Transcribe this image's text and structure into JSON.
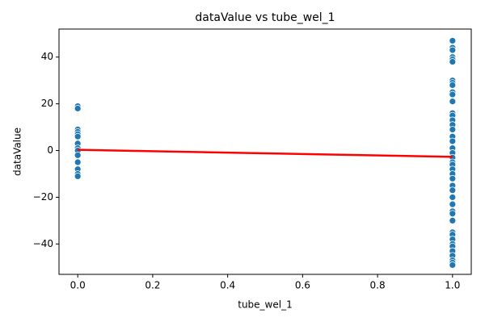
{
  "chart_data": {
    "type": "scatter",
    "title": "dataValue vs tube_wel_1",
    "xlabel": "tube_wel_1",
    "ylabel": "dataValue",
    "xlim": [
      -0.05,
      1.05
    ],
    "ylim": [
      -53,
      52
    ],
    "xticks": [
      {
        "value": 0,
        "label": "0.0"
      },
      {
        "value": 0.2,
        "label": "0.2"
      },
      {
        "value": 0.4,
        "label": "0.4"
      },
      {
        "value": 0.6,
        "label": "0.6"
      },
      {
        "value": 0.8,
        "label": "0.8"
      },
      {
        "value": 1,
        "label": "1.0"
      }
    ],
    "yticks": [
      {
        "value": -40,
        "label": "−40"
      },
      {
        "value": -20,
        "label": "−20"
      },
      0,
      20,
      40
    ],
    "series": [
      {
        "type": "scatter",
        "color": "#1f77b4",
        "x": [
          0,
          0,
          0,
          0,
          0,
          0,
          0,
          0,
          0,
          0,
          0,
          0,
          0,
          0,
          1,
          1,
          1,
          1,
          1,
          1,
          1,
          1,
          1,
          1,
          1,
          1,
          1,
          1,
          1,
          1,
          1,
          1,
          1,
          1,
          1,
          1,
          1,
          1,
          1,
          1,
          1,
          1,
          1,
          1,
          1,
          1,
          1,
          1,
          1,
          1,
          1,
          1,
          1,
          1,
          1,
          1,
          1,
          1
        ],
        "values": [
          19,
          18,
          9,
          8,
          7,
          6,
          3,
          1,
          0,
          -2,
          -5,
          -8,
          -10,
          -11,
          47,
          44,
          43,
          40,
          39,
          38,
          30,
          29,
          28,
          25,
          24,
          21,
          16,
          15,
          13,
          11,
          9,
          6,
          4,
          1,
          -1,
          -3,
          -5,
          -6,
          -8,
          -10,
          -12,
          -15,
          -17,
          -20,
          -23,
          -26,
          -27,
          -30,
          -35,
          -36,
          -38,
          -40,
          -41,
          -43,
          -45,
          -47,
          -48,
          -49
        ]
      },
      {
        "type": "line",
        "color": "#ff0000",
        "x": [
          0,
          1
        ],
        "values": [
          0.3,
          -2.7
        ]
      }
    ]
  }
}
